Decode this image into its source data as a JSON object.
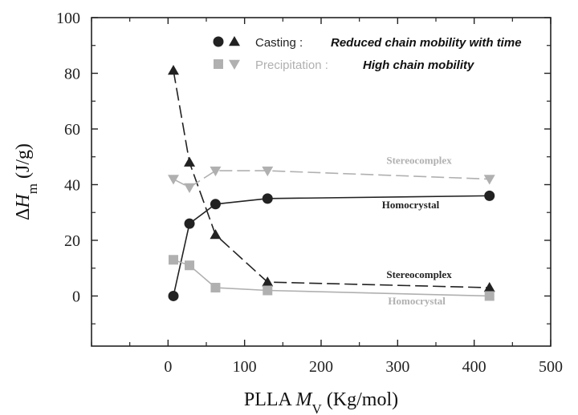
{
  "chart_data": {
    "type": "line",
    "xlabel": "PLLA M_V (Kg/mol)",
    "ylabel": "ΔH_m (J/g)",
    "xlim": [
      -100,
      500
    ],
    "ylim": [
      -18,
      100
    ],
    "xticks": [
      0,
      100,
      200,
      300,
      400,
      500
    ],
    "yticks": [
      0,
      20,
      40,
      60,
      80,
      100
    ],
    "grid": false,
    "legend_position": "top-right",
    "legend": [
      {
        "label": "Casting :",
        "desc": "Reduced chain mobility with time",
        "color": "#222222"
      },
      {
        "label": "Precipitation :",
        "desc": "High chain mobility",
        "color": "#b0b0b0"
      }
    ],
    "series": [
      {
        "name": "Casting homocrystal",
        "marker": "circle",
        "color": "#222222",
        "dash": "none",
        "x": [
          7,
          28,
          62,
          130,
          420
        ],
        "y": [
          0,
          26,
          33,
          35,
          36
        ]
      },
      {
        "name": "Casting stereocomplex",
        "marker": "triangle-up",
        "color": "#222222",
        "dash": "dashed",
        "x": [
          7,
          28,
          62,
          130,
          420
        ],
        "y": [
          81,
          48,
          22,
          5,
          3
        ]
      },
      {
        "name": "Precipitation homocrystal",
        "marker": "square",
        "color": "#b0b0b0",
        "dash": "none",
        "x": [
          7,
          28,
          62,
          130,
          420
        ],
        "y": [
          13,
          11,
          3,
          2,
          0
        ]
      },
      {
        "name": "Precipitation stereocomplex",
        "marker": "triangle-down",
        "color": "#b0b0b0",
        "dash": "dashed",
        "x": [
          7,
          28,
          62,
          130,
          420
        ],
        "y": [
          42,
          39,
          45,
          45,
          42
        ]
      }
    ],
    "annotations": [
      {
        "text": "Stereocomplex",
        "x": 328,
        "y": 47.5,
        "color": "#b0b0b0"
      },
      {
        "text": "Homocrystal",
        "x": 317,
        "y": 31.5,
        "color": "#222222"
      },
      {
        "text": "Stereocomplex",
        "x": 328,
        "y": 6.5,
        "color": "#222222"
      },
      {
        "text": "Homocrystal",
        "x": 325,
        "y": -3,
        "color": "#b0b0b0"
      }
    ]
  }
}
